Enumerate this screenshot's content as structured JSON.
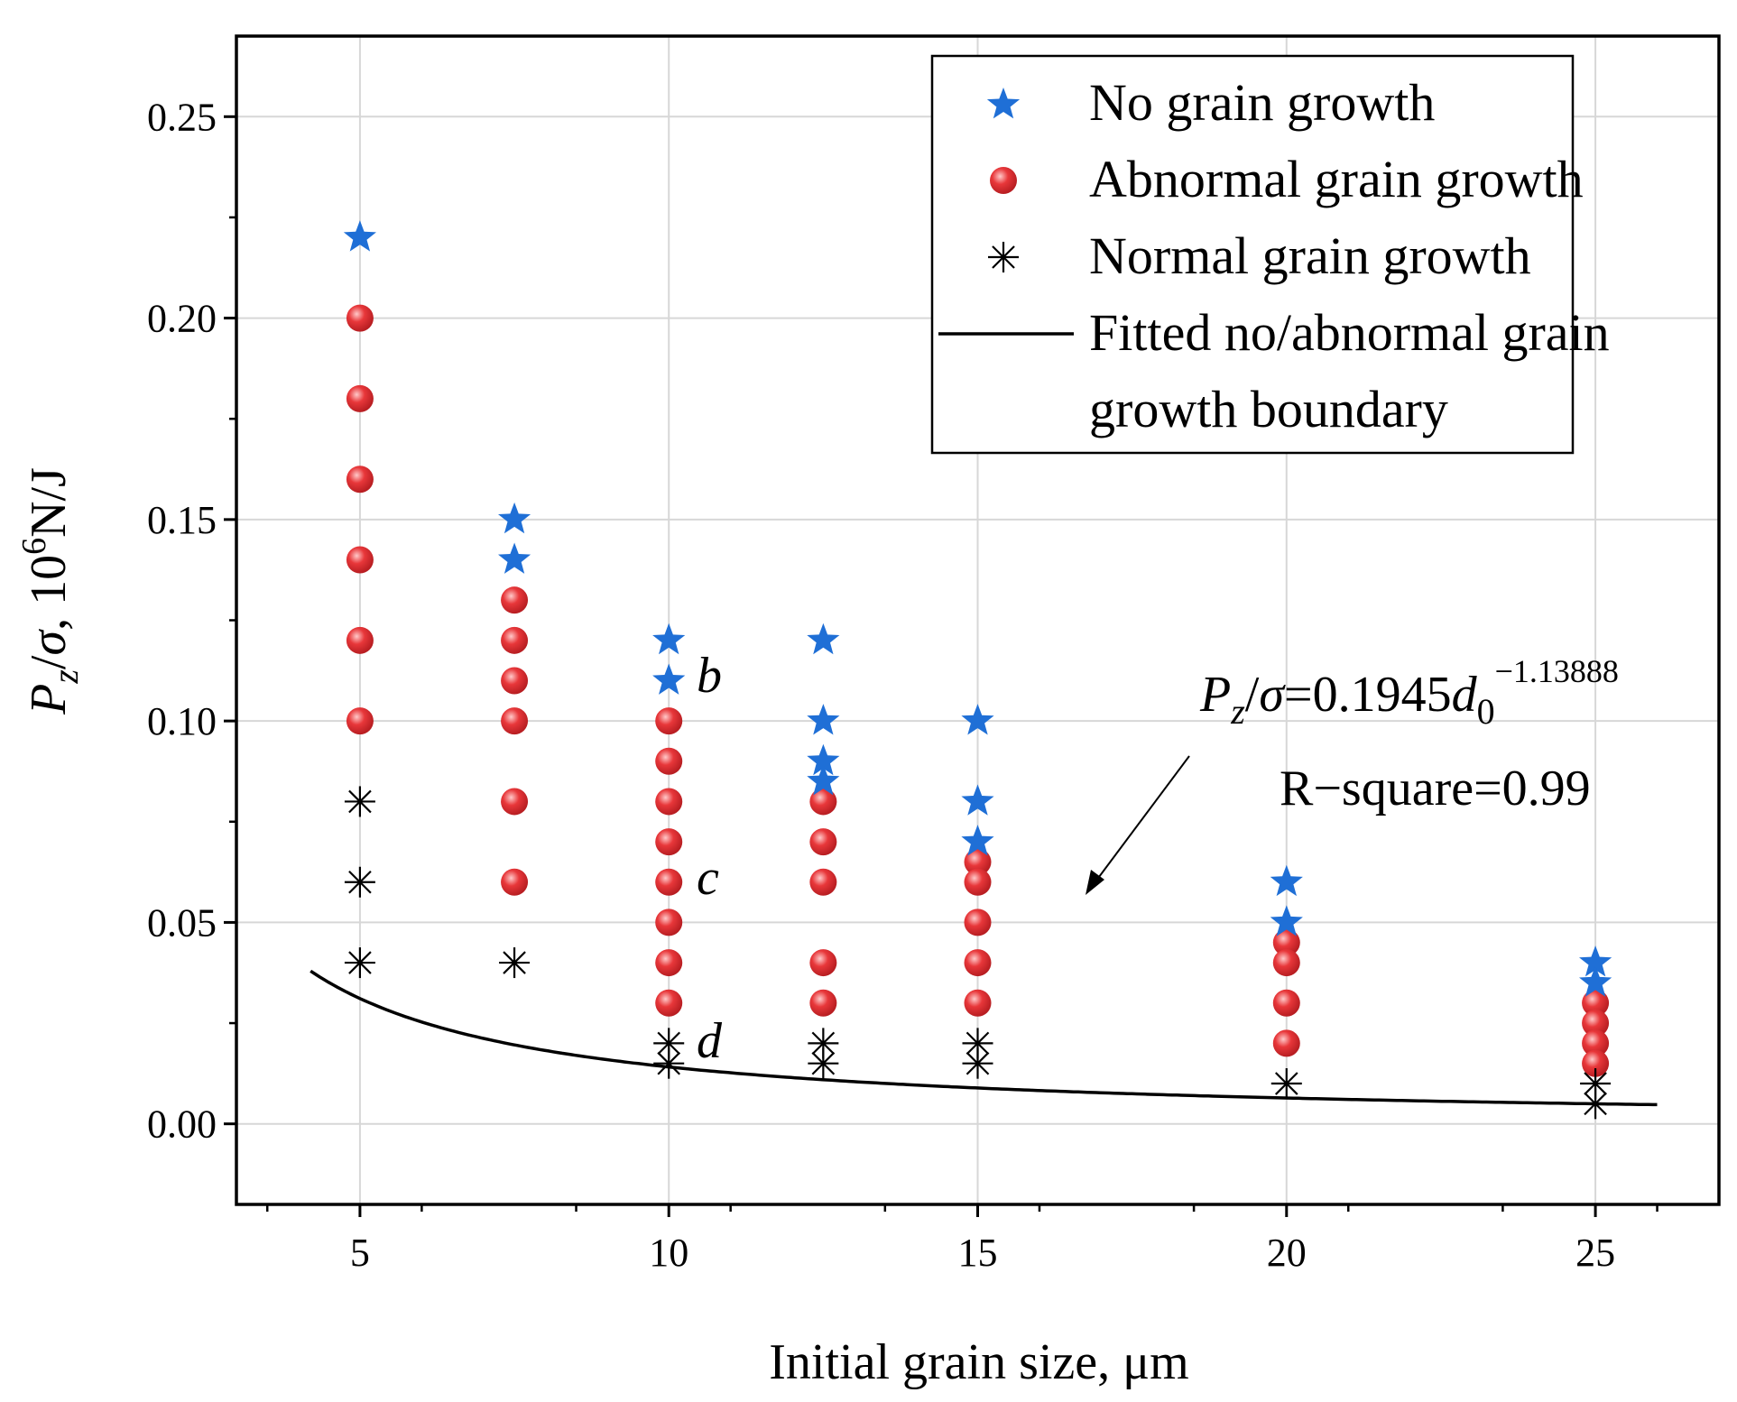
{
  "chart_data": {
    "type": "scatter",
    "xlabel": "Initial grain size, μm",
    "ylabel": {
      "p": "P",
      "sub": "z",
      "mid": "/",
      "sigma": "σ",
      "comma": ", 10",
      "exp": "6",
      "unit": "N/J"
    },
    "xlim": [
      3,
      27
    ],
    "ylim": [
      -0.02,
      0.27
    ],
    "x_ticks": [
      5,
      10,
      15,
      20,
      25
    ],
    "x_tick_labels": [
      "5",
      "10",
      "15",
      "20",
      "25"
    ],
    "y_ticks": [
      0.0,
      0.05,
      0.1,
      0.15,
      0.2,
      0.25
    ],
    "y_tick_labels": [
      "0.00",
      "0.05",
      "0.10",
      "0.15",
      "0.20",
      "0.25"
    ],
    "grid": true,
    "legend_position": "top-right",
    "series": [
      {
        "name": "No grain growth",
        "marker": "star",
        "color": "#1f6fd6",
        "points": [
          [
            5,
            0.22
          ],
          [
            7.5,
            0.15
          ],
          [
            7.5,
            0.14
          ],
          [
            10,
            0.12
          ],
          [
            10,
            0.11
          ],
          [
            12.5,
            0.12
          ],
          [
            12.5,
            0.1
          ],
          [
            12.5,
            0.09
          ],
          [
            12.5,
            0.085
          ],
          [
            15,
            0.1
          ],
          [
            15,
            0.08
          ],
          [
            15,
            0.07
          ],
          [
            20,
            0.06
          ],
          [
            20,
            0.05
          ],
          [
            25,
            0.04
          ],
          [
            25,
            0.035
          ]
        ]
      },
      {
        "name": "Abnormal grain growth",
        "marker": "circle",
        "color": "#e8373a",
        "points": [
          [
            5,
            0.2
          ],
          [
            5,
            0.18
          ],
          [
            5,
            0.16
          ],
          [
            5,
            0.14
          ],
          [
            5,
            0.12
          ],
          [
            5,
            0.1
          ],
          [
            7.5,
            0.13
          ],
          [
            7.5,
            0.12
          ],
          [
            7.5,
            0.11
          ],
          [
            7.5,
            0.1
          ],
          [
            7.5,
            0.08
          ],
          [
            7.5,
            0.06
          ],
          [
            10,
            0.1
          ],
          [
            10,
            0.09
          ],
          [
            10,
            0.08
          ],
          [
            10,
            0.07
          ],
          [
            10,
            0.06
          ],
          [
            10,
            0.05
          ],
          [
            10,
            0.04
          ],
          [
            10,
            0.03
          ],
          [
            12.5,
            0.08
          ],
          [
            12.5,
            0.07
          ],
          [
            12.5,
            0.06
          ],
          [
            12.5,
            0.04
          ],
          [
            12.5,
            0.03
          ],
          [
            15,
            0.065
          ],
          [
            15,
            0.06
          ],
          [
            15,
            0.05
          ],
          [
            15,
            0.04
          ],
          [
            15,
            0.03
          ],
          [
            20,
            0.045
          ],
          [
            20,
            0.04
          ],
          [
            20,
            0.03
          ],
          [
            20,
            0.02
          ],
          [
            25,
            0.03
          ],
          [
            25,
            0.025
          ],
          [
            25,
            0.02
          ],
          [
            25,
            0.015
          ]
        ]
      },
      {
        "name": "Normal grain growth",
        "marker": "asterisk",
        "color": "#000000",
        "points": [
          [
            5,
            0.08
          ],
          [
            5,
            0.06
          ],
          [
            5,
            0.04
          ],
          [
            7.5,
            0.04
          ],
          [
            10,
            0.02
          ],
          [
            10,
            0.015
          ],
          [
            12.5,
            0.02
          ],
          [
            12.5,
            0.015
          ],
          [
            15,
            0.02
          ],
          [
            15,
            0.015
          ],
          [
            20,
            0.01
          ],
          [
            25,
            0.01
          ],
          [
            25,
            0.005
          ]
        ]
      }
    ],
    "fit": {
      "name_line1": "Fitted no/abnormal grain",
      "name_line2": "growth boundary",
      "coefficient": 0.1945,
      "exponent": -1.13888,
      "x_range": [
        4.2,
        26
      ],
      "color": "#000000"
    },
    "annotations": {
      "equation": {
        "p": "P",
        "sub_z": "z",
        "slash": "/",
        "sigma": "σ",
        "eq": "=0.1945",
        "d": "d",
        "sub_0": "0",
        "exp": "−1.13888"
      },
      "rsquare": "R−square=0.99",
      "point_labels": [
        {
          "text": "b",
          "x": 10,
          "y": 0.11
        },
        {
          "text": "c",
          "x": 10,
          "y": 0.06
        },
        {
          "text": "d",
          "x": 10,
          "y": 0.02
        }
      ]
    }
  }
}
